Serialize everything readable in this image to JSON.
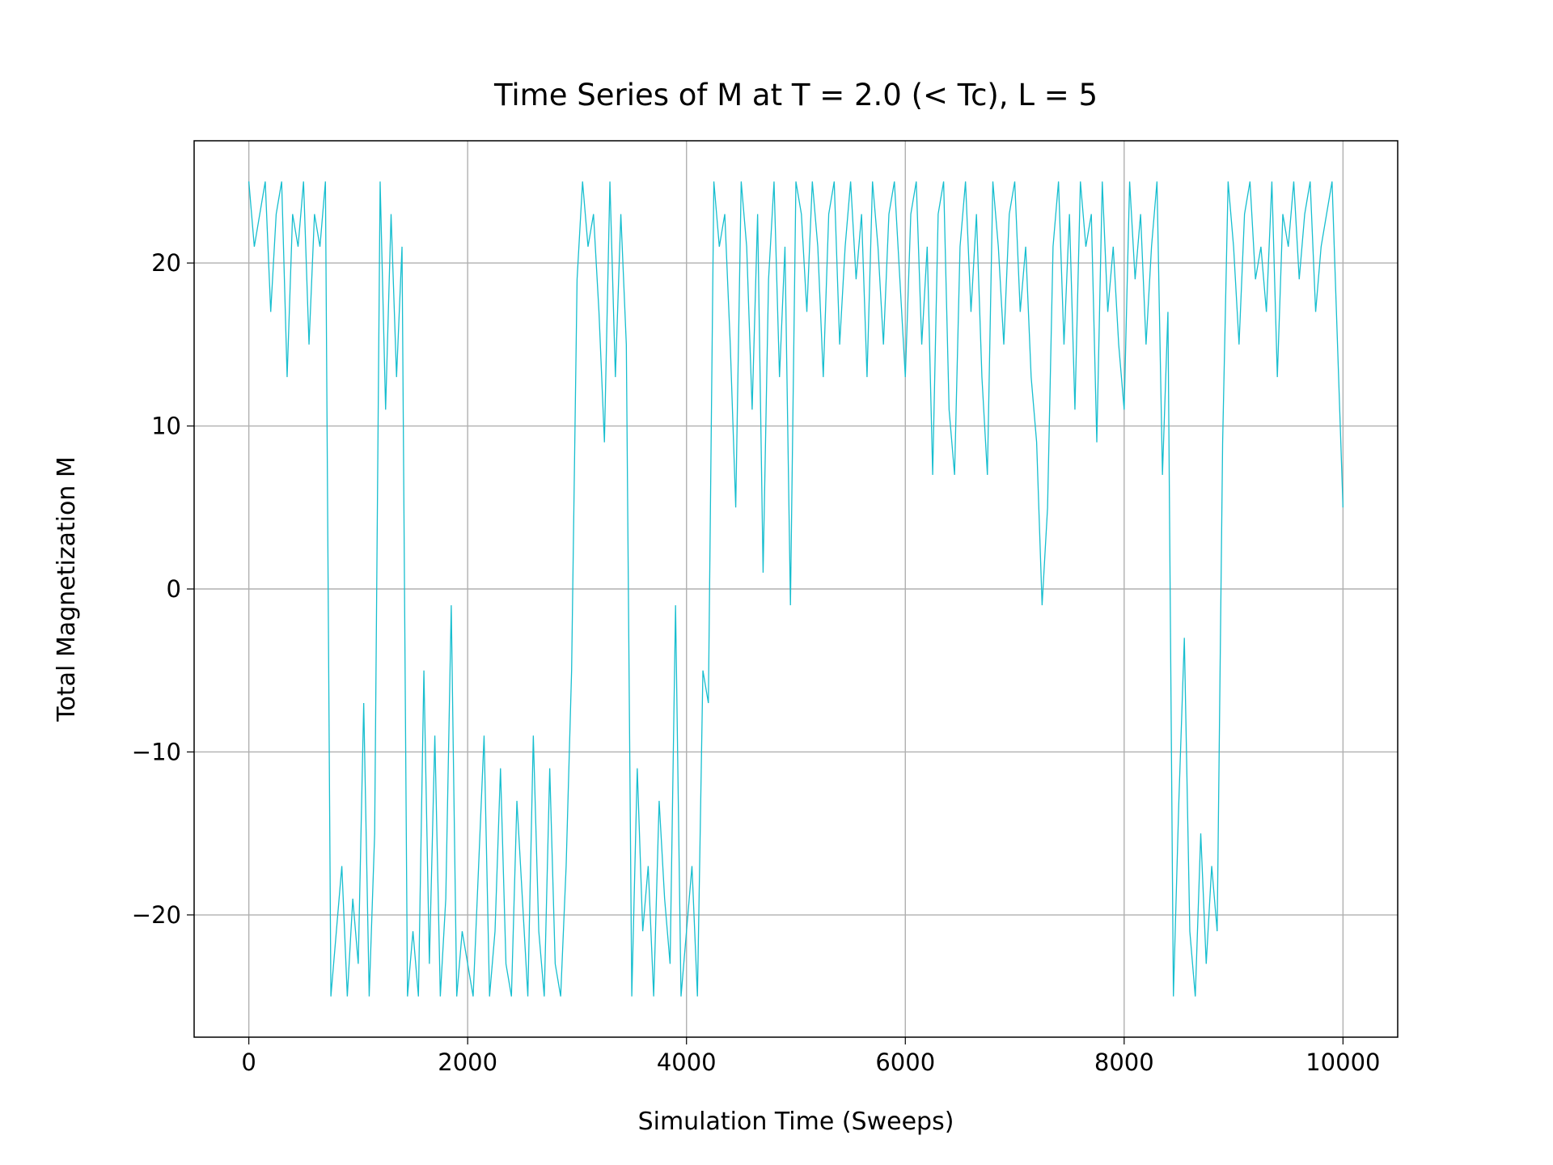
{
  "chart_data": {
    "type": "line",
    "title": "Time Series of M at T = 2.0 (< Tc), L = 5",
    "xlabel": "Simulation Time (Sweeps)",
    "ylabel": "Total Magnetization M",
    "x": [
      0,
      50,
      100,
      150,
      200,
      250,
      300,
      350,
      400,
      450,
      500,
      550,
      600,
      650,
      700,
      750,
      800,
      850,
      900,
      950,
      1000,
      1050,
      1100,
      1150,
      1200,
      1250,
      1300,
      1350,
      1400,
      1450,
      1500,
      1550,
      1600,
      1650,
      1700,
      1750,
      1800,
      1850,
      1900,
      1950,
      2000,
      2050,
      2100,
      2150,
      2200,
      2250,
      2300,
      2350,
      2400,
      2450,
      2500,
      2550,
      2600,
      2650,
      2700,
      2750,
      2800,
      2850,
      2900,
      2950,
      3000,
      3050,
      3100,
      3150,
      3200,
      3250,
      3300,
      3350,
      3400,
      3450,
      3500,
      3550,
      3600,
      3650,
      3700,
      3750,
      3800,
      3850,
      3900,
      3950,
      4000,
      4050,
      4100,
      4150,
      4200,
      4250,
      4300,
      4350,
      4400,
      4450,
      4500,
      4550,
      4600,
      4650,
      4700,
      4750,
      4800,
      4850,
      4900,
      4950,
      5000,
      5050,
      5100,
      5150,
      5200,
      5250,
      5300,
      5350,
      5400,
      5450,
      5500,
      5550,
      5600,
      5650,
      5700,
      5750,
      5800,
      5850,
      5900,
      5950,
      6000,
      6050,
      6100,
      6150,
      6200,
      6250,
      6300,
      6350,
      6400,
      6450,
      6500,
      6550,
      6600,
      6650,
      6700,
      6750,
      6800,
      6850,
      6900,
      6950,
      7000,
      7050,
      7100,
      7150,
      7200,
      7250,
      7300,
      7350,
      7400,
      7450,
      7500,
      7550,
      7600,
      7650,
      7700,
      7750,
      7800,
      7850,
      7900,
      7950,
      8000,
      8050,
      8100,
      8150,
      8200,
      8250,
      8300,
      8350,
      8400,
      8450,
      8500,
      8550,
      8600,
      8650,
      8700,
      8750,
      8800,
      8850,
      8900,
      8950,
      9000,
      9050,
      9100,
      9150,
      9200,
      9250,
      9300,
      9350,
      9400,
      9450,
      9500,
      9550,
      9600,
      9650,
      9700,
      9750,
      9800,
      9850,
      9900,
      9950,
      10000
    ],
    "series": [
      {
        "name": "M",
        "color": "#17becf",
        "values": [
          25,
          21,
          23,
          25,
          17,
          23,
          25,
          13,
          23,
          21,
          25,
          15,
          23,
          21,
          25,
          -25,
          -21,
          -17,
          -25,
          -19,
          -23,
          -7,
          -25,
          -15,
          25,
          11,
          23,
          13,
          21,
          -25,
          -21,
          -25,
          -5,
          -23,
          -9,
          -25,
          -19,
          -1,
          -25,
          -21,
          -23,
          -25,
          -17,
          -9,
          -25,
          -21,
          -11,
          -23,
          -25,
          -13,
          -19,
          -25,
          -9,
          -21,
          -25,
          -11,
          -23,
          -25,
          -17,
          -5,
          19,
          25,
          21,
          23,
          17,
          9,
          25,
          13,
          23,
          15,
          -25,
          -11,
          -21,
          -17,
          -25,
          -13,
          -19,
          -23,
          -1,
          -25,
          -21,
          -17,
          -25,
          -5,
          -7,
          25,
          21,
          23,
          15,
          5,
          25,
          21,
          11,
          23,
          1,
          19,
          25,
          13,
          21,
          -1,
          25,
          23,
          17,
          25,
          21,
          13,
          23,
          25,
          15,
          21,
          25,
          19,
          23,
          13,
          25,
          21,
          15,
          23,
          25,
          19,
          13,
          23,
          25,
          15,
          21,
          7,
          23,
          25,
          11,
          7,
          21,
          25,
          17,
          23,
          13,
          7,
          25,
          21,
          15,
          23,
          25,
          17,
          21,
          13,
          9,
          -1,
          5,
          21,
          25,
          15,
          23,
          11,
          25,
          21,
          23,
          9,
          25,
          17,
          21,
          15,
          11,
          25,
          19,
          23,
          15,
          21,
          25,
          7,
          17,
          -25,
          -13,
          -3,
          -21,
          -25,
          -15,
          -23,
          -17,
          -21,
          9,
          25,
          21,
          15,
          23,
          25,
          19,
          21,
          17,
          25,
          13,
          23,
          21,
          25,
          19,
          23,
          25,
          17,
          21,
          23,
          25,
          15,
          5
        ]
      }
    ],
    "xlim": [
      -500,
      10500
    ],
    "ylim": [
      -27.5,
      27.5
    ],
    "xticks": [
      0,
      2000,
      4000,
      6000,
      8000,
      10000
    ],
    "yticks": [
      {
        "value": -20,
        "label": "−20"
      },
      {
        "value": -10,
        "label": "−10"
      },
      0,
      10,
      20
    ],
    "grid": true
  }
}
